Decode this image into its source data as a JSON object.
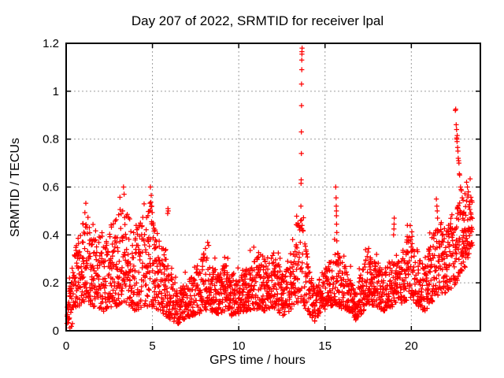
{
  "chart_data": {
    "type": "scatter",
    "title": "Day 207 of 2022, SRMTID for receiver lpal",
    "xlabel": "GPS time / hours",
    "ylabel": "SRMTID / TECUs",
    "series_name": "SRMTID",
    "xlim": [
      0,
      24
    ],
    "ylim": [
      0,
      1.2
    ],
    "xticks": [
      0,
      5,
      10,
      15,
      20
    ],
    "xtick_labels": [
      "0",
      "5",
      "10",
      "15",
      "20"
    ],
    "yticks": [
      0,
      0.2,
      0.4,
      0.6,
      0.8,
      1,
      1.2
    ],
    "ytick_labels": [
      "0",
      "0.2",
      "0.4",
      "0.6",
      "0.8",
      "1",
      "1.2"
    ],
    "grid": true,
    "legend": "none",
    "marker": {
      "shape": "plus",
      "color": "#ff0000",
      "size": 7
    },
    "colors": {
      "background": "#ffffff",
      "border": "#000000",
      "grid": "#9e9e9e",
      "text": "#000000"
    },
    "band_envelope": [
      [
        0.0,
        0.01,
        0.06
      ],
      [
        0.15,
        0.04,
        0.15
      ],
      [
        0.3,
        0.08,
        0.25
      ],
      [
        0.5,
        0.1,
        0.34
      ],
      [
        0.8,
        0.1,
        0.44
      ],
      [
        1.1,
        0.12,
        0.5
      ],
      [
        1.4,
        0.1,
        0.46
      ],
      [
        1.8,
        0.1,
        0.42
      ],
      [
        2.2,
        0.08,
        0.4
      ],
      [
        2.6,
        0.1,
        0.45
      ],
      [
        3.0,
        0.1,
        0.48
      ],
      [
        3.3,
        0.12,
        0.55
      ],
      [
        3.6,
        0.1,
        0.5
      ],
      [
        4.0,
        0.08,
        0.42
      ],
      [
        4.4,
        0.1,
        0.46
      ],
      [
        4.8,
        0.1,
        0.55
      ],
      [
        5.1,
        0.1,
        0.5
      ],
      [
        5.4,
        0.08,
        0.38
      ],
      [
        5.8,
        0.06,
        0.3
      ],
      [
        6.2,
        0.04,
        0.22
      ],
      [
        6.5,
        0.03,
        0.16
      ],
      [
        6.9,
        0.05,
        0.2
      ],
      [
        7.3,
        0.06,
        0.24
      ],
      [
        7.7,
        0.07,
        0.3
      ],
      [
        8.0,
        0.09,
        0.38
      ],
      [
        8.4,
        0.08,
        0.3
      ],
      [
        8.8,
        0.07,
        0.24
      ],
      [
        9.2,
        0.08,
        0.28
      ],
      [
        9.6,
        0.06,
        0.24
      ],
      [
        10.0,
        0.07,
        0.22
      ],
      [
        10.4,
        0.08,
        0.26
      ],
      [
        10.8,
        0.09,
        0.3
      ],
      [
        11.2,
        0.09,
        0.33
      ],
      [
        11.6,
        0.08,
        0.3
      ],
      [
        11.9,
        0.1,
        0.37
      ],
      [
        12.2,
        0.09,
        0.32
      ],
      [
        12.5,
        0.06,
        0.24
      ],
      [
        12.9,
        0.08,
        0.3
      ],
      [
        13.2,
        0.1,
        0.4
      ],
      [
        13.5,
        0.12,
        0.5
      ],
      [
        13.8,
        0.1,
        0.42
      ],
      [
        14.1,
        0.07,
        0.26
      ],
      [
        14.4,
        0.04,
        0.18
      ],
      [
        14.8,
        0.08,
        0.24
      ],
      [
        15.2,
        0.09,
        0.28
      ],
      [
        15.6,
        0.1,
        0.34
      ],
      [
        16.0,
        0.09,
        0.3
      ],
      [
        16.4,
        0.07,
        0.24
      ],
      [
        16.8,
        0.04,
        0.16
      ],
      [
        17.2,
        0.08,
        0.28
      ],
      [
        17.6,
        0.11,
        0.34
      ],
      [
        18.0,
        0.1,
        0.28
      ],
      [
        18.4,
        0.08,
        0.25
      ],
      [
        18.8,
        0.1,
        0.3
      ],
      [
        19.2,
        0.1,
        0.3
      ],
      [
        19.6,
        0.12,
        0.38
      ],
      [
        20.0,
        0.14,
        0.42
      ],
      [
        20.4,
        0.1,
        0.35
      ],
      [
        20.8,
        0.08,
        0.3
      ],
      [
        21.2,
        0.12,
        0.4
      ],
      [
        21.6,
        0.14,
        0.46
      ],
      [
        22.0,
        0.16,
        0.42
      ],
      [
        22.4,
        0.18,
        0.5
      ],
      [
        22.8,
        0.22,
        0.55
      ],
      [
        23.1,
        0.26,
        0.6
      ],
      [
        23.35,
        0.32,
        0.62
      ],
      [
        23.55,
        0.35,
        0.55
      ]
    ],
    "spike_points": [
      [
        0.22,
        0.012
      ],
      [
        0.3,
        0.018
      ],
      [
        0.36,
        0.03
      ],
      [
        3.32,
        0.6
      ],
      [
        3.36,
        0.57
      ],
      [
        4.88,
        0.6
      ],
      [
        4.93,
        0.565
      ],
      [
        5.88,
        0.49
      ],
      [
        5.9,
        0.51
      ],
      [
        5.92,
        0.5
      ],
      [
        13.6,
        0.52
      ],
      [
        13.61,
        0.615
      ],
      [
        13.62,
        0.63
      ],
      [
        13.63,
        0.74
      ],
      [
        13.63,
        0.83
      ],
      [
        13.64,
        0.94
      ],
      [
        13.64,
        1.03
      ],
      [
        13.65,
        1.09
      ],
      [
        13.65,
        1.13
      ],
      [
        13.66,
        1.155
      ],
      [
        13.66,
        1.165
      ],
      [
        13.67,
        1.18
      ],
      [
        15.62,
        0.6
      ],
      [
        15.64,
        0.555
      ],
      [
        15.65,
        0.52
      ],
      [
        15.66,
        0.5
      ],
      [
        15.66,
        0.48
      ],
      [
        15.67,
        0.445
      ],
      [
        15.68,
        0.41
      ],
      [
        15.68,
        0.375
      ],
      [
        18.97,
        0.4
      ],
      [
        18.99,
        0.425
      ],
      [
        19.0,
        0.445
      ],
      [
        19.01,
        0.47
      ],
      [
        21.45,
        0.55
      ],
      [
        21.48,
        0.52
      ],
      [
        21.5,
        0.5
      ],
      [
        21.52,
        0.47
      ],
      [
        22.55,
        0.92
      ],
      [
        22.57,
        0.925
      ],
      [
        22.6,
        0.86
      ],
      [
        22.62,
        0.84
      ],
      [
        22.63,
        0.805
      ],
      [
        22.64,
        0.8
      ],
      [
        22.65,
        0.79
      ],
      [
        22.66,
        0.815
      ],
      [
        22.68,
        0.765
      ],
      [
        22.7,
        0.75
      ],
      [
        22.72,
        0.72
      ],
      [
        22.74,
        0.71
      ],
      [
        22.76,
        0.7
      ],
      [
        22.78,
        0.655
      ],
      [
        22.8,
        0.65
      ],
      [
        22.85,
        0.6
      ],
      [
        22.88,
        0.59
      ],
      [
        22.9,
        0.585
      ],
      [
        22.95,
        0.555
      ],
      [
        23.0,
        0.545
      ],
      [
        23.2,
        0.62
      ],
      [
        23.25,
        0.6
      ],
      [
        23.3,
        0.58
      ]
    ],
    "sampling": {
      "seed": 20722,
      "t_start": 0.05,
      "t_end": 23.55,
      "step_hours": 0.016,
      "extra_point_prob": 0.6,
      "shape_bias": 1.3
    }
  }
}
